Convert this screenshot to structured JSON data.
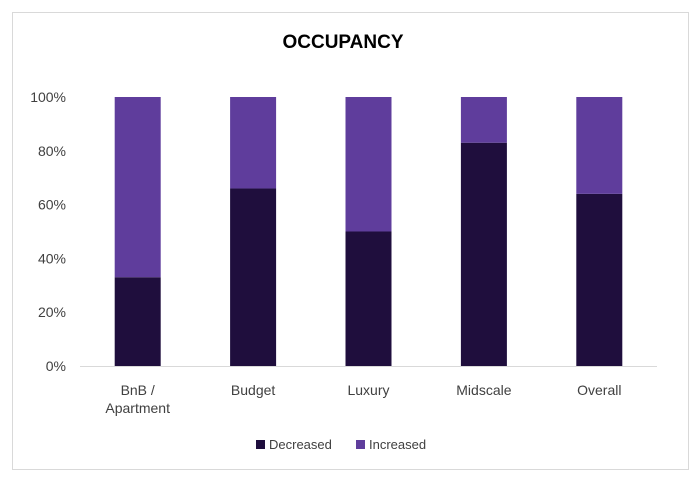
{
  "chart_data": {
    "type": "bar",
    "stacked": true,
    "title": "OCCUPANCY",
    "xlabel": "",
    "ylabel": "",
    "ylim": [
      0,
      100
    ],
    "y_ticks": [
      "0%",
      "20%",
      "40%",
      "60%",
      "80%",
      "100%"
    ],
    "categories": [
      [
        "BnB /",
        "Apartment"
      ],
      [
        "Budget"
      ],
      [
        "Luxury"
      ],
      [
        "Midscale"
      ],
      [
        "Overall"
      ]
    ],
    "series": [
      {
        "name": "Decreased",
        "color": "#1f0e3d",
        "values": [
          33,
          66,
          50,
          83,
          64
        ]
      },
      {
        "name": "Increased",
        "color": "#5f3d9c",
        "values": [
          67,
          34,
          50,
          17,
          36
        ]
      }
    ],
    "grid": false,
    "legend_position": "bottom"
  }
}
